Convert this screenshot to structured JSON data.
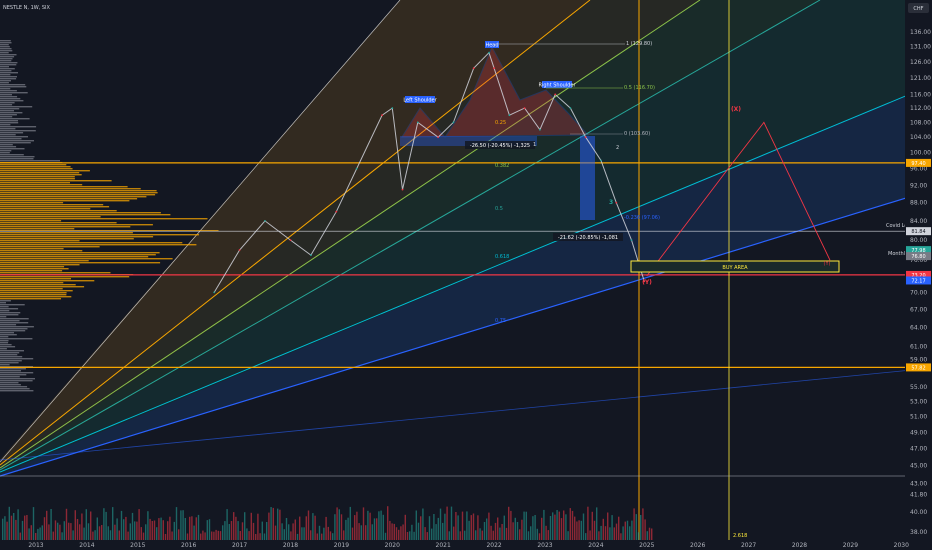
{
  "header": {
    "symbol_title": "NESTLE N, 1W, SIX",
    "currency": "CHF"
  },
  "colors": {
    "background": "#131722",
    "orange": "#f7a600",
    "red": "#f23645",
    "green": "#26a69a",
    "blue": "#2962ff",
    "cyan": "#00bcd4",
    "lime": "#8bc34a",
    "yellow_box": "#ffeb3b"
  },
  "chart_data": {
    "type": "line",
    "title": "NESTLE N, 1W, SIX",
    "x_axis": {
      "ticks": [
        "2013",
        "2014",
        "2015",
        "2016",
        "2017",
        "2018",
        "2019",
        "2020",
        "2021",
        "2022",
        "2023",
        "2024",
        "2025",
        "2026",
        "2027",
        "2028",
        "2029",
        "2030"
      ],
      "range": [
        2013,
        2030
      ]
    },
    "y_axis": {
      "scale": "log",
      "range": [
        38,
        140
      ],
      "ticks": [
        "136.00",
        "131.00",
        "126.00",
        "121.00",
        "116.00",
        "112.00",
        "108.00",
        "104.00",
        "100.00",
        "96.00",
        "92.00",
        "88.00",
        "84.00",
        "80.00",
        "76.00",
        "73.00",
        "70.00",
        "67.00",
        "64.00",
        "61.00",
        "59.00",
        "55.00",
        "53.00",
        "51.00",
        "49.00",
        "47.00",
        "45.00",
        "43.00",
        "41.80",
        "40.00",
        "38.00"
      ]
    },
    "price_path": {
      "x": [
        2016.5,
        2017.0,
        2017.5,
        2018.0,
        2018.4,
        2018.9,
        2019.3,
        2019.8,
        2020.0,
        2020.2,
        2020.5,
        2020.9,
        2021.2,
        2021.6,
        2021.9,
        2022.0,
        2022.3,
        2022.6,
        2022.9,
        2023.2,
        2023.5,
        2023.8,
        2024.1,
        2024.4,
        2024.7,
        2024.95
      ],
      "y": [
        70,
        78,
        84,
        80,
        77,
        86,
        96,
        110,
        112,
        91,
        108,
        104,
        108,
        124,
        129,
        124,
        110,
        112,
        106,
        116,
        112,
        104,
        98,
        88,
        80,
        72
      ]
    },
    "projection": {
      "x": [
        2025.0,
        2026.6,
        2027.3,
        2028.6
      ],
      "y": [
        73,
        96,
        108,
        76
      ]
    },
    "series": [
      {
        "name": "Head",
        "x": 2022.0,
        "y": 129.8
      },
      {
        "name": "Left Shoulder",
        "x": 2020.5,
        "y": 111
      },
      {
        "name": "Right Shoulder",
        "x": 2023.3,
        "y": 115
      }
    ],
    "fib_levels": [
      {
        "label": "1 (129.80)",
        "value": 129.8
      },
      {
        "label": "0.5 (116.70)",
        "value": 116.7
      },
      {
        "label": "0 (103.60)",
        "value": 103.6
      },
      {
        "label": "-0.236 (97.06)",
        "value": 97.06
      }
    ],
    "fib_fan_labels": [
      "0.25",
      "0.382",
      "0.5",
      "0.618",
      "0.75"
    ],
    "measurements": [
      {
        "label": "-26.50 (-20.45%) -1,325"
      },
      {
        "label": "-21.62 (-20.85%) -1,081"
      }
    ],
    "wave_labels": [
      "1",
      "2",
      "3",
      "(X)",
      "(Y)",
      "(Y)"
    ],
    "horizontal_levels": [
      {
        "label": "97.40",
        "value": 97.4,
        "color": "#f7a600"
      },
      {
        "label": "81.84",
        "value": 81.84,
        "color": "#d1d4dc",
        "note": "Covid Low"
      },
      {
        "label": "73.20",
        "value": 73.2,
        "color": "#f23645"
      },
      {
        "label": "57.82",
        "value": 57.82,
        "color": "#f7a600"
      }
    ],
    "price_badges": [
      "77.98",
      "72.17",
      "76.80"
    ],
    "annotations": {
      "buy_area": "BUY AREA",
      "monthly": "Monthly",
      "covid_low": "Covid Low",
      "fib_time": "2.618"
    },
    "grid": false,
    "legend": "none"
  }
}
